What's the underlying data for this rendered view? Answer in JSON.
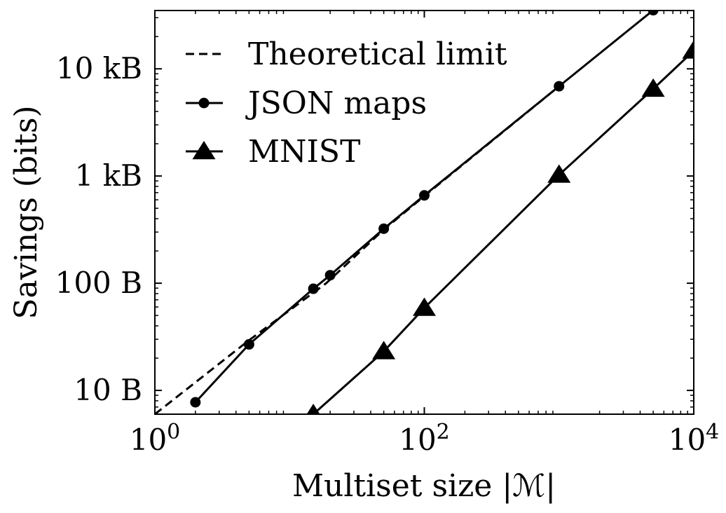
{
  "chart_data": {
    "type": "line",
    "xlabel": "Multiset size |ℳ|",
    "ylabel": "Savings (bits)",
    "xscale": "log",
    "yscale": "log",
    "xlim": [
      1,
      10000
    ],
    "ylim_bits": [
      48,
      280000
    ],
    "grid": false,
    "legend_position": "top-left",
    "x_ticks": [
      {
        "value": 1,
        "base": "10",
        "exp": "0"
      },
      {
        "value": 100,
        "base": "10",
        "exp": "2"
      },
      {
        "value": 10000,
        "base": "10",
        "exp": "4"
      }
    ],
    "y_ticks": [
      {
        "label": "10 B",
        "bits": 80
      },
      {
        "label": "100 B",
        "bits": 800
      },
      {
        "label": "1 kB",
        "bits": 8000
      },
      {
        "label": "10 kB",
        "bits": 80000
      }
    ],
    "series": [
      {
        "name": "Theoretical limit",
        "style": "dashed",
        "marker": "none",
        "points": [
          {
            "x": 1,
            "y": 48
          },
          {
            "x": 5,
            "y": 235
          },
          {
            "x": 18.7,
            "y": 800
          },
          {
            "x": 50,
            "y": 2530
          },
          {
            "x": 100,
            "y": 5200
          },
          {
            "x": 1000,
            "y": 55000
          }
        ]
      },
      {
        "name": "JSON maps",
        "style": "solid",
        "marker": "circle",
        "points": [
          {
            "x": 2,
            "y": 62
          },
          {
            "x": 5,
            "y": 215
          },
          {
            "x": 15,
            "y": 710
          },
          {
            "x": 20,
            "y": 950
          },
          {
            "x": 50,
            "y": 2580
          },
          {
            "x": 100,
            "y": 5280
          },
          {
            "x": 1000,
            "y": 55000
          },
          {
            "x": 5000,
            "y": 282000
          }
        ]
      },
      {
        "name": "MNIST",
        "style": "solid",
        "marker": "triangle",
        "points": [
          {
            "x": 15,
            "y": 48
          },
          {
            "x": 50,
            "y": 185
          },
          {
            "x": 100,
            "y": 470
          },
          {
            "x": 1000,
            "y": 8200
          },
          {
            "x": 5000,
            "y": 52000
          },
          {
            "x": 10000,
            "y": 118000
          }
        ]
      }
    ]
  }
}
